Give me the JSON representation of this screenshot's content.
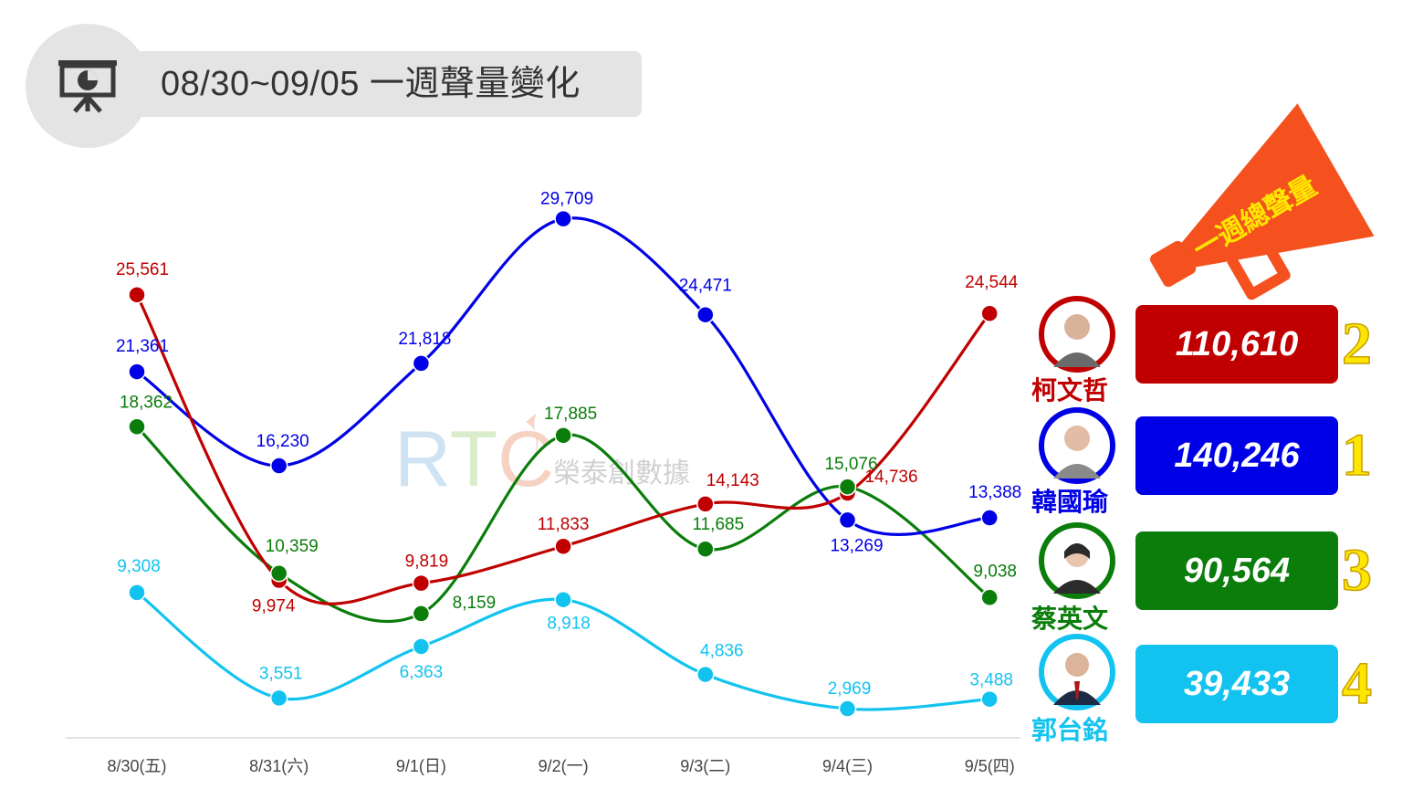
{
  "header": {
    "title": "08/30~09/05 一週聲量變化",
    "icon": "presentation-chart-icon"
  },
  "watermark": {
    "logo": "RTC",
    "text": "榮泰創數據"
  },
  "megaphone": {
    "text": "一週總聲量",
    "color": "#f4511e",
    "text_color": "#ffe600"
  },
  "chart_data": {
    "type": "line",
    "title": "08/30~09/05 一週聲量變化",
    "xlabel": "",
    "ylabel": "",
    "ylim": [
      0,
      32000
    ],
    "grid": false,
    "categories": [
      "8/30(五)",
      "8/31(六)",
      "9/1(日)",
      "9/2(一)",
      "9/3(二)",
      "9/4(三)",
      "9/5(四)"
    ],
    "series": [
      {
        "name": "柯文哲",
        "color": "#c00000",
        "values": [
          25561,
          9974,
          9819,
          11833,
          14143,
          14736,
          24544
        ],
        "labels": [
          "25,561",
          "9,974",
          "9,819",
          "11,833",
          "14,143",
          "14,736",
          "24,544"
        ]
      },
      {
        "name": "韓國瑜",
        "color": "#0000e6",
        "values": [
          21361,
          16230,
          21818,
          29709,
          24471,
          13269,
          13388
        ],
        "labels": [
          "21,361",
          "16,230",
          "21,818",
          "29,709",
          "24,471",
          "13,269",
          "13,388"
        ]
      },
      {
        "name": "蔡英文",
        "color": "#0a7d0a",
        "values": [
          18362,
          10359,
          8159,
          17885,
          11685,
          15076,
          9038
        ],
        "labels": [
          "18,362",
          "10,359",
          "8,159",
          "17,885",
          "11,685",
          "15,076",
          "9,038"
        ]
      },
      {
        "name": "郭台銘",
        "color": "#12c3f0",
        "values": [
          9308,
          3551,
          6363,
          8918,
          4836,
          2969,
          3488
        ],
        "labels": [
          "9,308",
          "3,551",
          "6,363",
          "8,918",
          "4,836",
          "2,969",
          "3,488"
        ]
      }
    ]
  },
  "candidates": [
    {
      "name": "柯文哲",
      "total": "110,610",
      "rank": "2",
      "color": "#c00000"
    },
    {
      "name": "韓國瑜",
      "total": "140,246",
      "rank": "1",
      "color": "#0000e6"
    },
    {
      "name": "蔡英文",
      "total": "90,564",
      "rank": "3",
      "color": "#0a7d0a"
    },
    {
      "name": "郭台銘",
      "total": "39,433",
      "rank": "4",
      "color": "#12c3f0"
    }
  ]
}
